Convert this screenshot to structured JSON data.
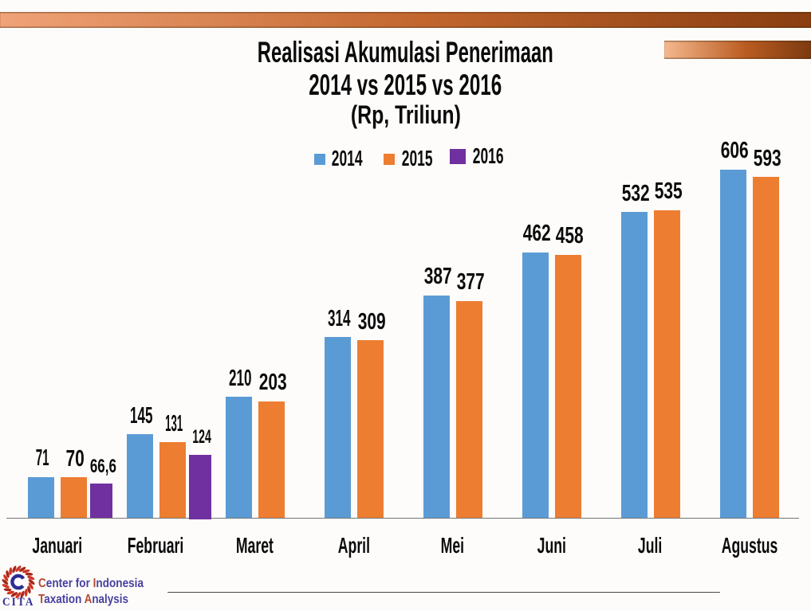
{
  "title": {
    "line1": "Realisasi Akumulasi Penerimaan",
    "line2": "2014 vs 2015 vs 2016",
    "line3": "(Rp, Triliun)"
  },
  "legend": [
    {
      "label": "2014",
      "color": "#5b9bd5"
    },
    {
      "label": "2015",
      "color": "#ed7d31"
    },
    {
      "label": "2016",
      "color": "#7030a0"
    }
  ],
  "chart_data": {
    "type": "bar",
    "title": "Realisasi Akumulasi Penerimaan 2014 vs 2015 vs 2016 (Rp, Triliun)",
    "categories": [
      "Januari",
      "Februari",
      "Maret",
      "April",
      "Mei",
      "Juni",
      "Juli",
      "Agustus"
    ],
    "series": [
      {
        "name": "2014",
        "color": "#5b9bd5",
        "values": [
          71,
          145,
          210,
          314,
          387,
          462,
          532,
          606
        ]
      },
      {
        "name": "2015",
        "color": "#ed7d31",
        "values": [
          70,
          131,
          203,
          309,
          377,
          458,
          535,
          593
        ]
      },
      {
        "name": "2016",
        "color": "#7030a0",
        "values": [
          66.6,
          124,
          null,
          null,
          null,
          null,
          null,
          null
        ]
      }
    ],
    "value_label_decimal_separator": ",",
    "xlabel": "",
    "ylabel": "",
    "ylim": [
      0,
      680
    ],
    "grid": false,
    "legend_position": "top",
    "y_axis_visible": false
  },
  "decor": {
    "top_bar_gradient": [
      "#f0a378",
      "#c2662e",
      "#8a3e12"
    ],
    "accent_bar_gradient": [
      "#f5b88e",
      "#ba5c22",
      "#7c3a10"
    ],
    "axis_color": "#757575",
    "text_color": "#0b0b0b"
  },
  "footer": {
    "logo_text": "CITA",
    "org_line1": "Center for Indonesia",
    "org_line2": "Taxation Analysis",
    "logo_ring_color": "#cf3522",
    "logo_c_color": "#2b2d92",
    "org_text_color": "#4740a0",
    "org_initial_color": "#b54a32"
  }
}
